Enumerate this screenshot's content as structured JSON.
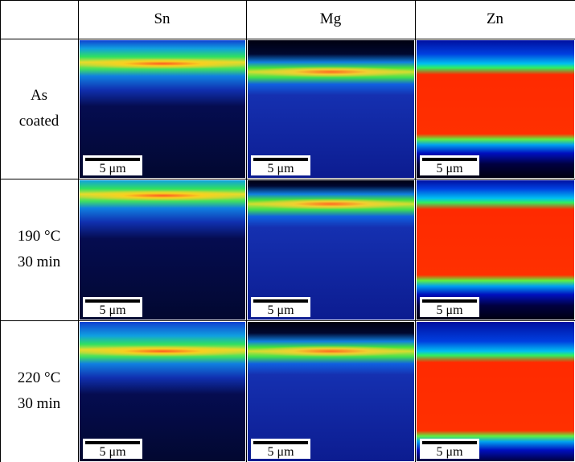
{
  "header": {
    "columns": [
      "Sn",
      "Mg",
      "Zn"
    ]
  },
  "rows": [
    {
      "label": [
        "As",
        "coated"
      ],
      "scale_bars": [
        "5 μm",
        "5 μm",
        "5 μm"
      ]
    },
    {
      "label": [
        "190 °C",
        "30 min"
      ],
      "scale_bars": [
        "5 μm",
        "5 μm",
        "5 μm"
      ]
    },
    {
      "label": [
        "220 °C",
        "30 min"
      ],
      "scale_bars": [
        "5 μm",
        "5 μm",
        "5 μm"
      ]
    }
  ]
}
